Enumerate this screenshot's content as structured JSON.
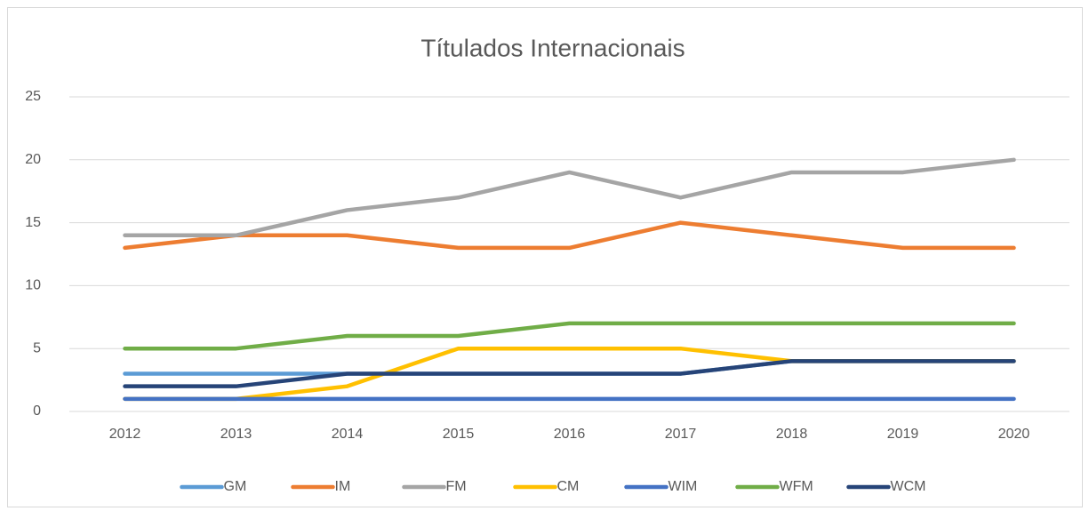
{
  "chart_data": {
    "type": "line",
    "title": "Títulados Internacionais",
    "categories": [
      "2012",
      "2013",
      "2014",
      "2015",
      "2016",
      "2017",
      "2018",
      "2019",
      "2020"
    ],
    "series": [
      {
        "name": "GM",
        "color": "#5b9bd5",
        "values": [
          3,
          3,
          3,
          3,
          3,
          3,
          4,
          4,
          4
        ]
      },
      {
        "name": "IM",
        "color": "#ed7d31",
        "values": [
          13,
          14,
          14,
          13,
          13,
          15,
          14,
          13,
          13
        ]
      },
      {
        "name": "FM",
        "color": "#a5a5a5",
        "values": [
          14,
          14,
          16,
          17,
          19,
          17,
          19,
          19,
          20
        ]
      },
      {
        "name": "CM",
        "color": "#ffc000",
        "values": [
          1,
          1,
          2,
          5,
          5,
          5,
          4,
          4,
          4
        ]
      },
      {
        "name": "WIM",
        "color": "#4472c4",
        "values": [
          1,
          1,
          1,
          1,
          1,
          1,
          1,
          1,
          1
        ]
      },
      {
        "name": "WFM",
        "color": "#70ad47",
        "values": [
          5,
          5,
          6,
          6,
          7,
          7,
          7,
          7,
          7
        ]
      },
      {
        "name": "WCM",
        "color": "#264478",
        "values": [
          2,
          2,
          3,
          3,
          3,
          3,
          4,
          4,
          4
        ]
      }
    ],
    "ylim": [
      0,
      25
    ],
    "yticks": [
      0,
      5,
      10,
      15,
      20,
      25
    ],
    "grid": true,
    "legend": "bottom"
  }
}
